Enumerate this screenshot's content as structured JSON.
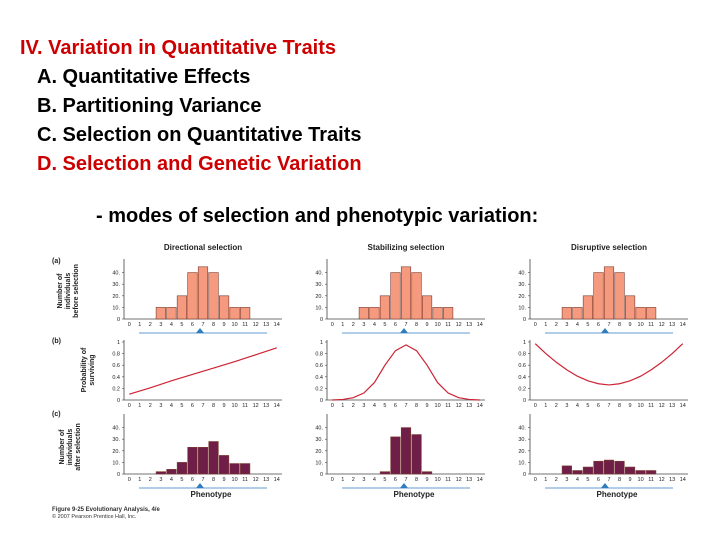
{
  "outline": {
    "heading": "IV. Variation in Quantitative Traits",
    "items": [
      {
        "label": "A. Quantitative Effects"
      },
      {
        "label": "B. Partitioning Variance"
      },
      {
        "label": "C. Selection on Quantitative Traits"
      },
      {
        "label": "D. Selection and Genetic Variation"
      }
    ]
  },
  "subtitle": "- modes of selection and phenotypic variation:",
  "figure": {
    "row_labels": [
      "(a)",
      "(b)",
      "(c)"
    ],
    "row_a_ylabel": [
      "Number of",
      "individuals",
      "before selection"
    ],
    "row_b_ylabel": [
      "Probability of",
      "surviving"
    ],
    "row_c_ylabel": [
      "Number of",
      "individuals",
      "after selection"
    ],
    "xlabel": "Phenotype",
    "caption_line1": "Figure 9-25  Evolutionary Analysis, 4/e",
    "caption_line2": "© 2007 Pearson Prentice Hall, Inc.",
    "colors": {
      "before": "#f59a7e",
      "after": "#6e1e47",
      "curve": "#cc2233",
      "marker": "#2e7dc0"
    }
  },
  "chart_data": [
    {
      "type": "bar",
      "title": "Directional selection",
      "row": "a",
      "xlabel": "",
      "ylabel": "Number of individuals before selection",
      "categories": [
        "0",
        "1",
        "2",
        "3",
        "4",
        "5",
        "6",
        "7",
        "8",
        "9",
        "10",
        "11",
        "12",
        "13",
        "14"
      ],
      "values": [
        0,
        0,
        0,
        10,
        10,
        20,
        40,
        45,
        40,
        20,
        10,
        10,
        0,
        0,
        0
      ],
      "yticks": [
        "0",
        "10.",
        "20.",
        "30.",
        "40."
      ],
      "ylim": [
        0,
        50
      ]
    },
    {
      "type": "bar",
      "title": "Stabilizing selection",
      "row": "a",
      "xlabel": "",
      "ylabel": "Number of individuals before selection",
      "categories": [
        "0",
        "1",
        "2",
        "3",
        "4",
        "5",
        "6",
        "7",
        "8",
        "9",
        "10",
        "11",
        "12",
        "13",
        "14"
      ],
      "values": [
        0,
        0,
        0,
        10,
        10,
        20,
        40,
        45,
        40,
        20,
        10,
        10,
        0,
        0,
        0
      ],
      "yticks": [
        "0",
        "10.",
        "20.",
        "30.",
        "40."
      ],
      "ylim": [
        0,
        50
      ]
    },
    {
      "type": "bar",
      "title": "Disruptive selection",
      "row": "a",
      "xlabel": "",
      "ylabel": "Number of individuals before selection",
      "categories": [
        "0",
        "1",
        "2",
        "3",
        "4",
        "5",
        "6",
        "7",
        "8",
        "9",
        "10",
        "11",
        "12",
        "13",
        "14"
      ],
      "values": [
        0,
        0,
        0,
        10,
        10,
        20,
        40,
        45,
        40,
        20,
        10,
        10,
        0,
        0,
        0
      ],
      "yticks": [
        "0",
        "10.",
        "20.",
        "30.",
        "40."
      ],
      "ylim": [
        0,
        50
      ]
    },
    {
      "type": "line",
      "title": "",
      "row": "b",
      "xlabel": "",
      "ylabel": "Probability of surviving",
      "x": [
        0,
        2,
        4,
        6,
        8,
        10,
        12,
        14
      ],
      "y": [
        0.1,
        0.21,
        0.33,
        0.44,
        0.55,
        0.66,
        0.78,
        0.9
      ],
      "yticks": [
        "0",
        "0.2",
        "0.4",
        "0.6",
        "0.8",
        "1"
      ],
      "ylim": [
        0,
        1
      ]
    },
    {
      "type": "line",
      "title": "",
      "row": "b",
      "xlabel": "",
      "ylabel": "Probability of surviving",
      "x": [
        0,
        1,
        2,
        3,
        4,
        5,
        6,
        7,
        8,
        9,
        10,
        11,
        12,
        13,
        14
      ],
      "y": [
        0.0,
        0.01,
        0.04,
        0.12,
        0.3,
        0.6,
        0.85,
        0.95,
        0.85,
        0.6,
        0.3,
        0.12,
        0.04,
        0.01,
        0.0
      ],
      "yticks": [
        "0",
        "0.2",
        "0.4",
        "0.6",
        "0.8",
        "1"
      ],
      "ylim": [
        0,
        1
      ]
    },
    {
      "type": "line",
      "title": "",
      "row": "b",
      "xlabel": "",
      "ylabel": "Probability of surviving",
      "x": [
        0,
        1,
        2,
        3,
        4,
        5,
        6,
        7,
        8,
        9,
        10,
        11,
        12,
        13,
        14
      ],
      "y": [
        0.97,
        0.8,
        0.65,
        0.52,
        0.41,
        0.33,
        0.28,
        0.26,
        0.28,
        0.33,
        0.41,
        0.52,
        0.65,
        0.8,
        0.97
      ],
      "yticks": [
        "0",
        "0.2",
        "0.4",
        "0.6",
        "0.8",
        "1"
      ],
      "ylim": [
        0,
        1
      ]
    },
    {
      "type": "bar",
      "title": "",
      "row": "c",
      "xlabel": "Phenotype",
      "ylabel": "Number of individuals after selection",
      "categories": [
        "0",
        "1",
        "2",
        "3",
        "4",
        "5",
        "6",
        "7",
        "8",
        "9",
        "10",
        "11",
        "12",
        "13",
        "14"
      ],
      "values": [
        0,
        0,
        0,
        2,
        4,
        10,
        23,
        23,
        28,
        16,
        9,
        9,
        0,
        0,
        0
      ],
      "yticks": [
        "0",
        "10.",
        "20.",
        "30.",
        "40."
      ],
      "ylim": [
        0,
        50
      ]
    },
    {
      "type": "bar",
      "title": "",
      "row": "c",
      "xlabel": "Phenotype",
      "ylabel": "Number of individuals after selection",
      "categories": [
        "0",
        "1",
        "2",
        "3",
        "4",
        "5",
        "6",
        "7",
        "8",
        "9",
        "10",
        "11",
        "12",
        "13",
        "14"
      ],
      "values": [
        0,
        0,
        0,
        0,
        0,
        2,
        32,
        40,
        34,
        2,
        0,
        0,
        0,
        0,
        0
      ],
      "yticks": [
        "0",
        "10.",
        "20.",
        "30.",
        "40."
      ],
      "ylim": [
        0,
        50
      ]
    },
    {
      "type": "bar",
      "title": "",
      "row": "c",
      "xlabel": "Phenotype",
      "ylabel": "Number of individuals after selection",
      "categories": [
        "0",
        "1",
        "2",
        "3",
        "4",
        "5",
        "6",
        "7",
        "8",
        "9",
        "10",
        "11",
        "12",
        "13",
        "14"
      ],
      "values": [
        0,
        0,
        0,
        7,
        3,
        6,
        11,
        12,
        11,
        6,
        3,
        3,
        0,
        0,
        0
      ],
      "yticks": [
        "0",
        "10.",
        "20.",
        "30.",
        "40."
      ],
      "ylim": [
        0,
        50
      ]
    }
  ]
}
